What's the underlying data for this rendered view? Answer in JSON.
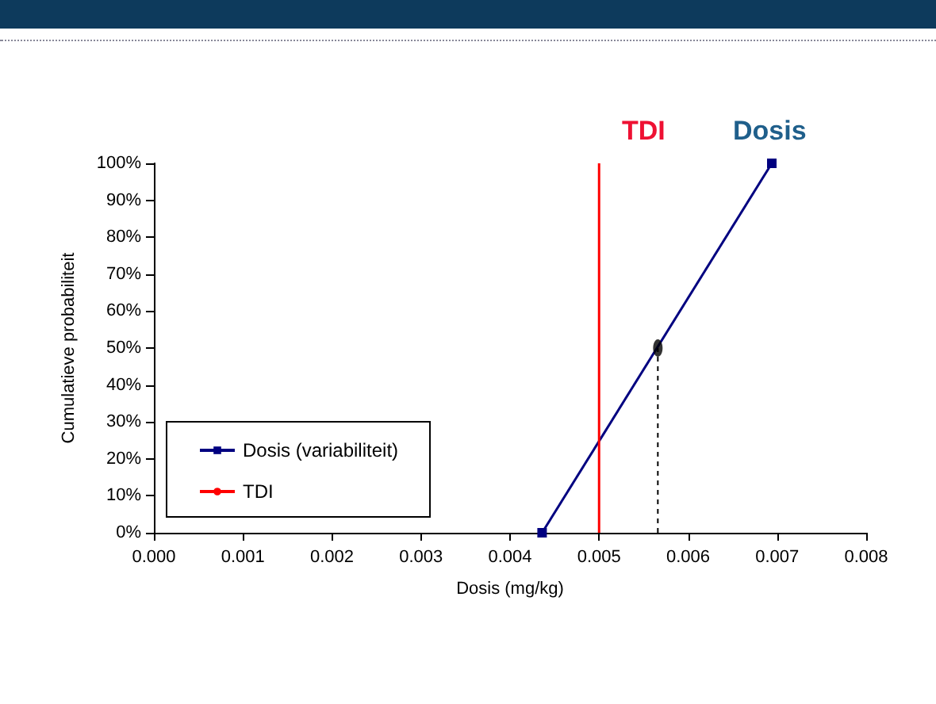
{
  "chart_data": {
    "type": "line",
    "xlabel": "Dosis (mg/kg)",
    "ylabel": "Cumulatieve probabiliteit",
    "annotations": [
      "TDI",
      "Dosis"
    ],
    "series": [
      {
        "name": "Dosis (variabiliteit)",
        "color": "#000080",
        "x": [
          0.00436,
          0.00694
        ],
        "values": [
          0,
          100
        ],
        "marker": "square",
        "line_style": "solid"
      },
      {
        "name": "TDI",
        "color": "#ff0000",
        "x": [
          0.005,
          0.005
        ],
        "values": [
          0,
          100
        ],
        "marker": "none",
        "line_style": "solid"
      },
      {
        "type": "line",
        "color": "#000000",
        "x": [
          0.00566,
          0.00566
        ],
        "values": [
          0,
          50
        ],
        "marker": "none",
        "line_style": "dashed"
      },
      {
        "type": "scatter",
        "color": "#000000",
        "x": [
          0.00566
        ],
        "values": [
          50
        ],
        "marker": "circle"
      }
    ],
    "xlim": [
      0,
      0.008
    ],
    "xticks": [
      {
        "value": 0,
        "label": "0.000"
      },
      {
        "value": 0.001,
        "label": "0.001"
      },
      {
        "value": 0.002,
        "label": "0.002"
      },
      {
        "value": 0.003,
        "label": "0.003"
      },
      {
        "value": 0.004,
        "label": "0.004"
      },
      {
        "value": 0.005,
        "label": "0.005"
      },
      {
        "value": 0.006,
        "label": "0.006"
      },
      {
        "value": 0.007,
        "label": "0.007"
      },
      {
        "value": 0.008,
        "label": "0.008"
      }
    ],
    "ylim": [
      0,
      100
    ],
    "yticks": [
      {
        "value": 0,
        "label": "0%"
      },
      {
        "value": 10,
        "label": "10%"
      },
      {
        "value": 20,
        "label": "20%"
      },
      {
        "value": 30,
        "label": "30%"
      },
      {
        "value": 40,
        "label": "40%"
      },
      {
        "value": 50,
        "label": "50%"
      },
      {
        "value": 60,
        "label": "60%"
      },
      {
        "value": 70,
        "label": "70%"
      },
      {
        "value": 80,
        "label": "80%"
      },
      {
        "value": 90,
        "label": "90%"
      },
      {
        "value": 100,
        "label": "100%"
      }
    ],
    "grid": false,
    "legend": "bottom left"
  }
}
